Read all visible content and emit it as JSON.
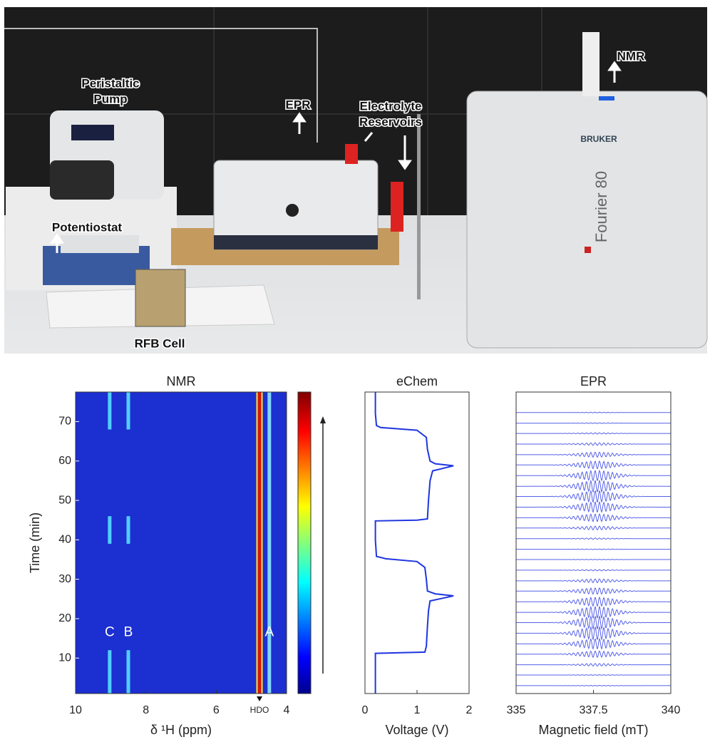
{
  "photo": {
    "labels": [
      {
        "lines": [
          "Peristaltic",
          "Pump"
        ]
      },
      {
        "lines": [
          "EPR"
        ]
      },
      {
        "lines": [
          "Electrolyte",
          "Reservoirs"
        ]
      },
      {
        "lines": [
          "NMR"
        ]
      },
      {
        "lines": [
          "Potentiostat"
        ]
      },
      {
        "lines": [
          "RFB Cell"
        ]
      }
    ],
    "device_text": [
      "BRUKER",
      "Fourier 80"
    ]
  },
  "chart_data": [
    {
      "type": "heatmap",
      "title": "NMR",
      "xlabel": "δ ¹H (ppm)",
      "ylabel": "Time (min)",
      "xlim": [
        10,
        4
      ],
      "xticks": [
        10,
        8,
        6,
        4
      ],
      "ylim": [
        1,
        77.5
      ],
      "yticks": [
        10,
        20,
        30,
        40,
        50,
        60,
        70
      ],
      "background": "#1c2fd0",
      "peaks": [
        {
          "label": "C",
          "ppm": 9.03,
          "color": "#56e0ff",
          "intervals": [
            [
              1,
              12
            ],
            [
              39,
              46
            ],
            [
              68,
              77.5
            ]
          ]
        },
        {
          "label": "B",
          "ppm": 8.5,
          "color": "#56e0ff",
          "intervals": [
            [
              1,
              12
            ],
            [
              39,
              46
            ],
            [
              68,
              77.5
            ]
          ]
        },
        {
          "label": "HDO",
          "ppm": 4.77,
          "color": "#d40000",
          "label_below": true
        },
        {
          "label": "A",
          "ppm": 4.49,
          "color": "#8fe8ff"
        }
      ]
    },
    {
      "type": "line",
      "title": "eChem",
      "xlabel": "Voltage (V)",
      "xlim": [
        0,
        2
      ],
      "xticks": [
        0,
        1,
        2
      ],
      "ylim": [
        1,
        77.5
      ],
      "color": "#1f35e0",
      "time": [
        1,
        11.2,
        11.5,
        13,
        18,
        22,
        24.5,
        25.2,
        25.8,
        26.3,
        27,
        30,
        33,
        34.5,
        35.2,
        35.8,
        40,
        44.8,
        45,
        45.3,
        50,
        55,
        57.5,
        58.3,
        58.8,
        59.3,
        60,
        63,
        66,
        67.8,
        68.5,
        69,
        72,
        77.5
      ],
      "voltage": [
        0.2,
        0.2,
        1.15,
        1.18,
        1.2,
        1.22,
        1.25,
        1.5,
        1.7,
        1.35,
        1.2,
        1.18,
        1.15,
        1.0,
        0.4,
        0.22,
        0.2,
        0.2,
        1.0,
        1.2,
        1.22,
        1.25,
        1.3,
        1.55,
        1.7,
        1.35,
        1.25,
        1.2,
        1.18,
        1.0,
        0.3,
        0.22,
        0.2,
        0.2
      ]
    },
    {
      "type": "stacked_spectra",
      "title": "EPR",
      "xlabel": "Magnetic field (mT)",
      "xlim": [
        335,
        340
      ],
      "xticks": [
        335,
        337.5,
        340
      ],
      "ylim": [
        1,
        77.5
      ],
      "color": "#5560e8",
      "times": [
        3,
        5.7,
        8.3,
        11,
        13.6,
        16.3,
        19,
        21.6,
        24.3,
        27,
        29.6,
        32.3,
        35,
        37.6,
        40.3,
        43,
        45.6,
        48.3,
        51,
        53.6,
        56.3,
        59,
        61.6,
        64.3,
        67,
        69.6,
        72.3
      ],
      "amplitudes": [
        0.05,
        0.05,
        0.2,
        0.5,
        0.8,
        1.0,
        1.0,
        0.9,
        0.7,
        0.5,
        0.3,
        0.1,
        0.05,
        0.05,
        0.1,
        0.3,
        0.6,
        0.8,
        0.9,
        0.9,
        0.8,
        0.6,
        0.4,
        0.2,
        0.1,
        0.05,
        0.05
      ]
    }
  ]
}
